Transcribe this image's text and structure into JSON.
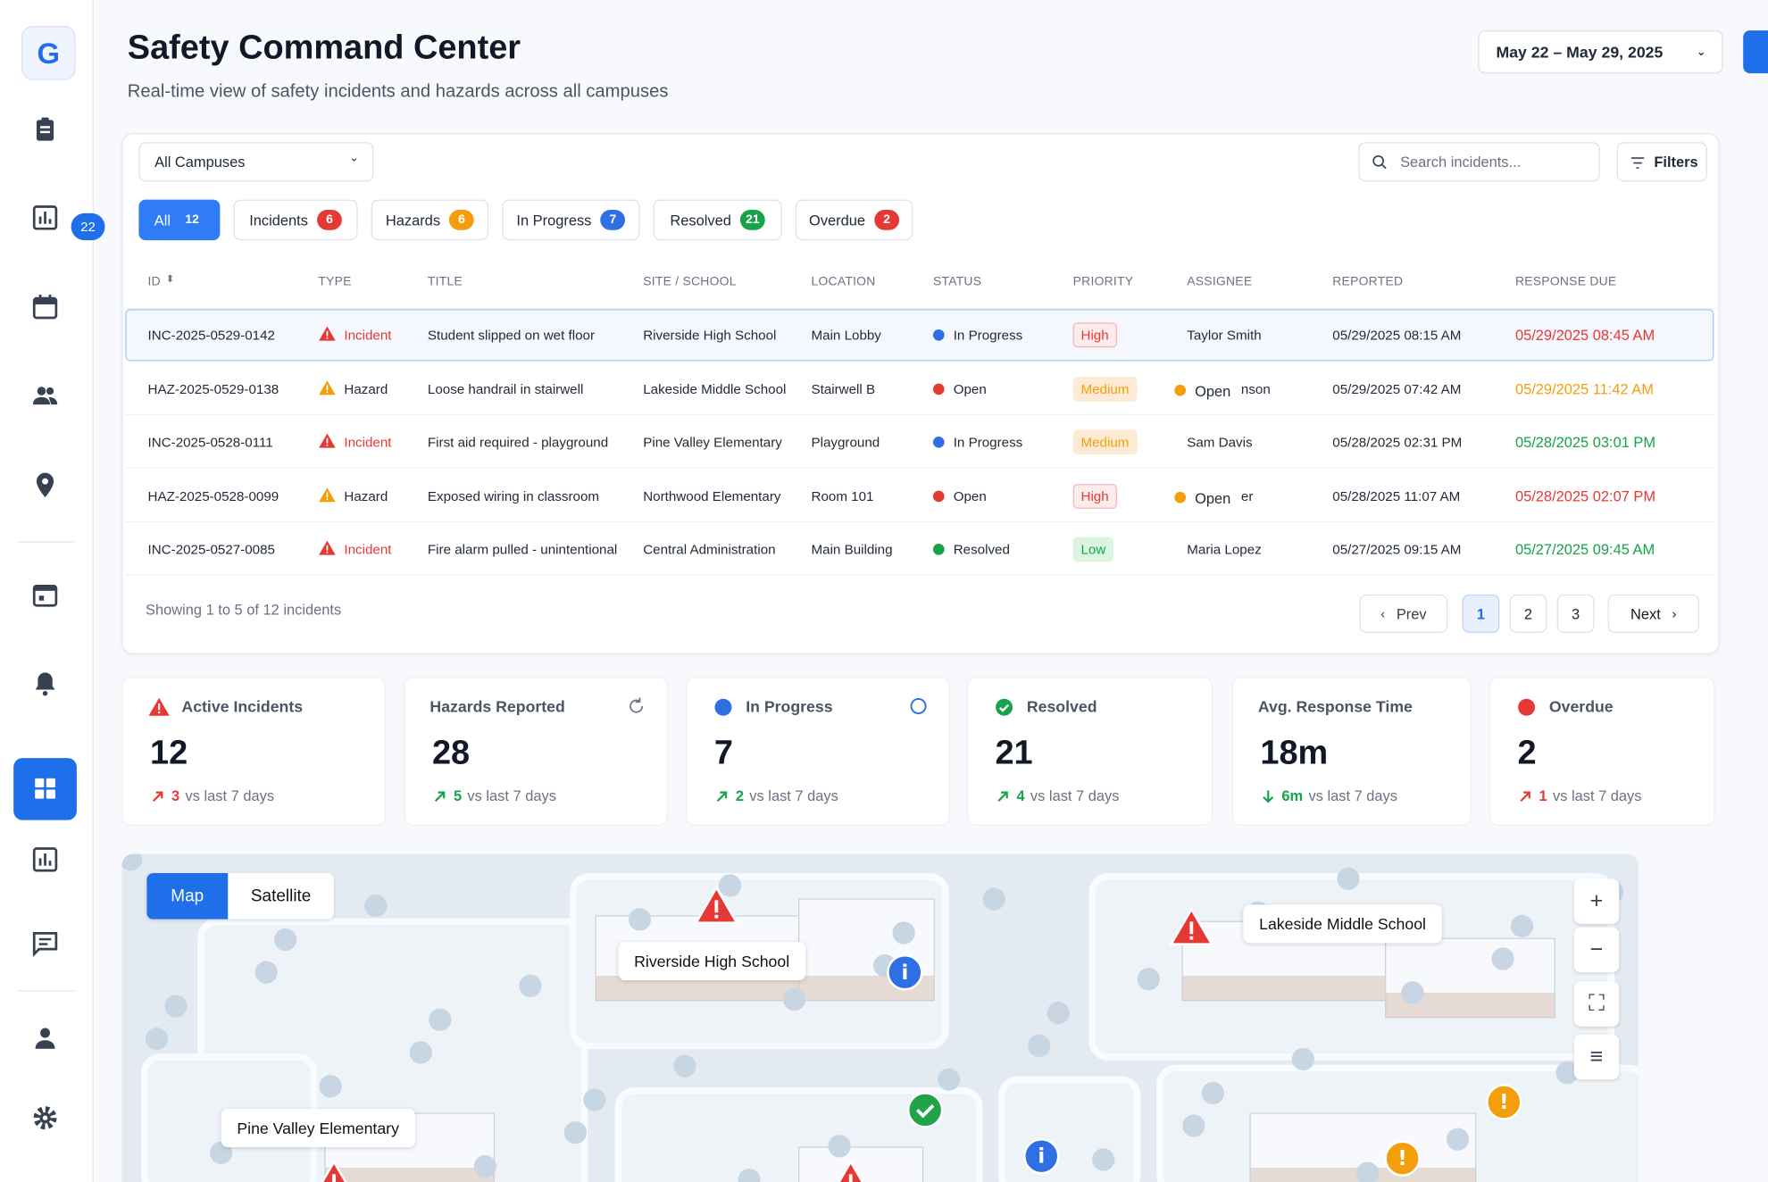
{
  "sidebar": {
    "logo": "G",
    "badge": "22"
  },
  "header": {
    "title": "Safety Command Center",
    "subtitle": "Real-time view of safety incidents and hazards across all campuses",
    "date_range": "May 22 – May 29, 2025"
  },
  "toolbar": {
    "campus": "All Campuses",
    "search_placeholder": "Search incidents...",
    "filters": "Filters"
  },
  "tabs": [
    {
      "label": "All",
      "count": 12,
      "color": "#2f7cf6"
    },
    {
      "label": "Incidents",
      "count": 6,
      "color": "#e53935"
    },
    {
      "label": "Hazards",
      "count": 6,
      "color": "#f59e0b"
    },
    {
      "label": "In Progress",
      "count": 7,
      "color": "#2f6fe4"
    },
    {
      "label": "Resolved",
      "count": 21,
      "color": "#16a34a"
    },
    {
      "label": "Overdue",
      "count": 2,
      "color": "#e53935"
    }
  ],
  "table": {
    "columns": [
      "ID",
      "TYPE",
      "TITLE",
      "SITE / SCHOOL",
      "LOCATION",
      "STATUS",
      "PRIORITY",
      "ASSIGNEE",
      "REPORTED",
      "RESPONSE DUE"
    ],
    "rows": [
      {
        "id": "INC-2025-0529-0142",
        "type": "Incident",
        "title": "Student slipped on wet floor",
        "site": "Riverside High School",
        "location": "Main Lobby",
        "status": "In Progress",
        "priority": "High",
        "assignee": "Taylor Smith",
        "reported": "05/29/2025 08:15 AM",
        "due": "05/29/2025 08:45 AM",
        "due_color": "#e53935"
      },
      {
        "id": "HAZ-2025-0529-0138",
        "type": "Hazard",
        "title": "Loose handrail in stairwell",
        "site": "Lakeside Middle School",
        "location": "Stairwell B",
        "status": "Open",
        "priority": "Medium",
        "assignee_overlay": "Open",
        "assignee": "nson",
        "reported": "05/29/2025 07:42 AM",
        "due": "05/29/2025 11:42 AM",
        "due_color": "#f59e0b"
      },
      {
        "id": "INC-2025-0528-0111",
        "type": "Incident",
        "title": "First aid required - playground",
        "site": "Pine Valley Elementary",
        "location": "Playground",
        "status": "In Progress",
        "priority": "Medium",
        "assignee": "Sam Davis",
        "reported": "05/28/2025 02:31 PM",
        "due": "05/28/2025 03:01 PM",
        "due_color": "#16a34a"
      },
      {
        "id": "HAZ-2025-0528-0099",
        "type": "Hazard",
        "title": "Exposed wiring in classroom",
        "site": "Northwood Elementary",
        "location": "Room 101",
        "status": "Open",
        "priority": "High",
        "assignee_overlay": "Open",
        "assignee": "er",
        "reported": "05/28/2025 11:07 AM",
        "due": "05/28/2025 02:07 PM",
        "due_color": "#e53935"
      },
      {
        "id": "INC-2025-0527-0085",
        "type": "Incident",
        "title": "Fire alarm pulled - unintentional",
        "site": "Central Administration",
        "location": "Main Building",
        "status": "Resolved",
        "priority": "Low",
        "assignee": "Maria Lopez",
        "reported": "05/27/2025 09:15 AM",
        "due": "05/27/2025 09:45 AM",
        "due_color": "#16a34a"
      }
    ]
  },
  "footer": {
    "showing": "Showing 1 to 5 of 12 incidents",
    "prev": "Prev",
    "pages": [
      1,
      2,
      3
    ],
    "next": "Next"
  },
  "kpis": [
    {
      "label": "Active Incidents",
      "value": 12,
      "delta": 3,
      "trend": "up",
      "delta_color": "#e53935",
      "note": "vs last 7 days"
    },
    {
      "label": "Hazards Reported",
      "value": 28,
      "delta": 5,
      "trend": "up",
      "delta_color": "#16a34a",
      "note": "vs last 7 days"
    },
    {
      "label": "In Progress",
      "value": 7,
      "delta": 2,
      "trend": "up",
      "delta_color": "#16a34a",
      "note": "vs last 7 days"
    },
    {
      "label": "Resolved",
      "value": 21,
      "delta": 4,
      "trend": "up",
      "delta_color": "#16a34a",
      "note": "vs last 7 days"
    },
    {
      "label": "Avg. Response Time",
      "value": "18m",
      "delta": "6m",
      "trend": "down",
      "delta_color": "#16a34a",
      "note": "vs last 7 days"
    },
    {
      "label": "Overdue",
      "value": 2,
      "delta": 1,
      "trend": "up",
      "delta_color": "#e53935",
      "note": "vs last 7 days"
    }
  ],
  "map": {
    "modes": [
      "Map",
      "Satellite"
    ],
    "labels": [
      "Riverside High School",
      "Lakeside Middle School",
      "Pine Valley Elementary"
    ]
  }
}
